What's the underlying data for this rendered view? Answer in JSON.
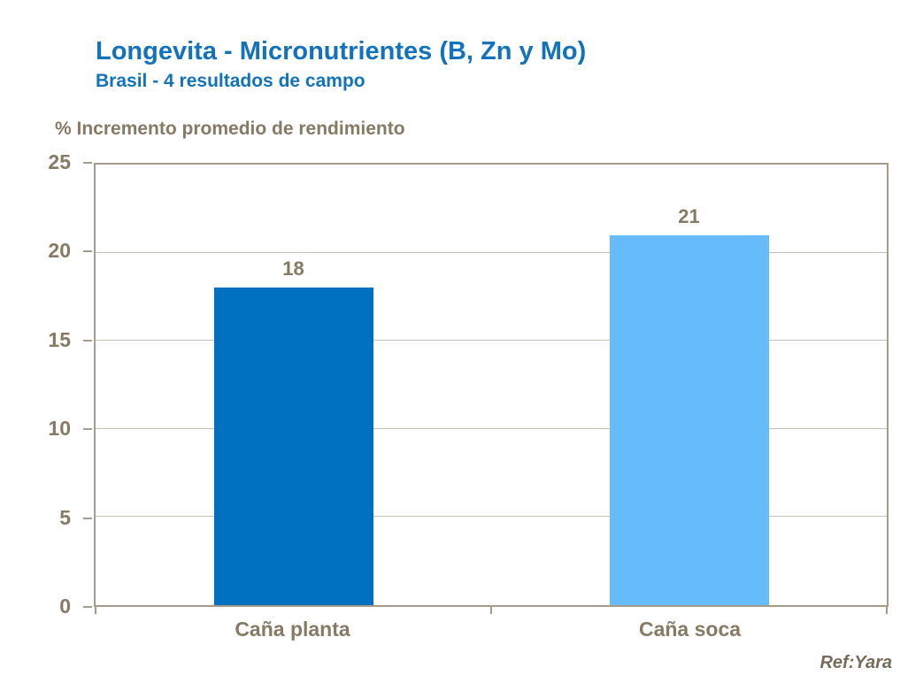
{
  "header": {
    "title": "Longevita - Micronutrientes (B, Zn y Mo)",
    "subtitle": "Brasil - 4 resultados de campo"
  },
  "footer": {
    "reference": "Ref:Yara"
  },
  "colors": {
    "title_blue": "#1272BC",
    "bar_dark_blue": "#0070C0",
    "bar_light_blue": "#66BBFA",
    "axis_text_brown": "#877A64",
    "axis_line": "#A59B8C",
    "gridline": "#C6C1B8",
    "footer_text": "#776B59"
  },
  "chart_data": {
    "type": "bar",
    "title": "Longevita - Micronutrientes (B, Zn y Mo)",
    "subtitle": "Brasil - 4 resultados de campo",
    "ylabel": "% Incremento promedio de rendimiento",
    "xlabel": "",
    "categories": [
      "Caña planta",
      "Caña soca"
    ],
    "values": [
      18,
      21
    ],
    "data_labels": [
      "18",
      "21"
    ],
    "bar_colors": [
      "#0070C0",
      "#66BBFA"
    ],
    "ylim": [
      0,
      25
    ],
    "yticks": [
      0,
      5,
      10,
      15,
      20,
      25
    ],
    "grid": true,
    "legend": "none"
  }
}
